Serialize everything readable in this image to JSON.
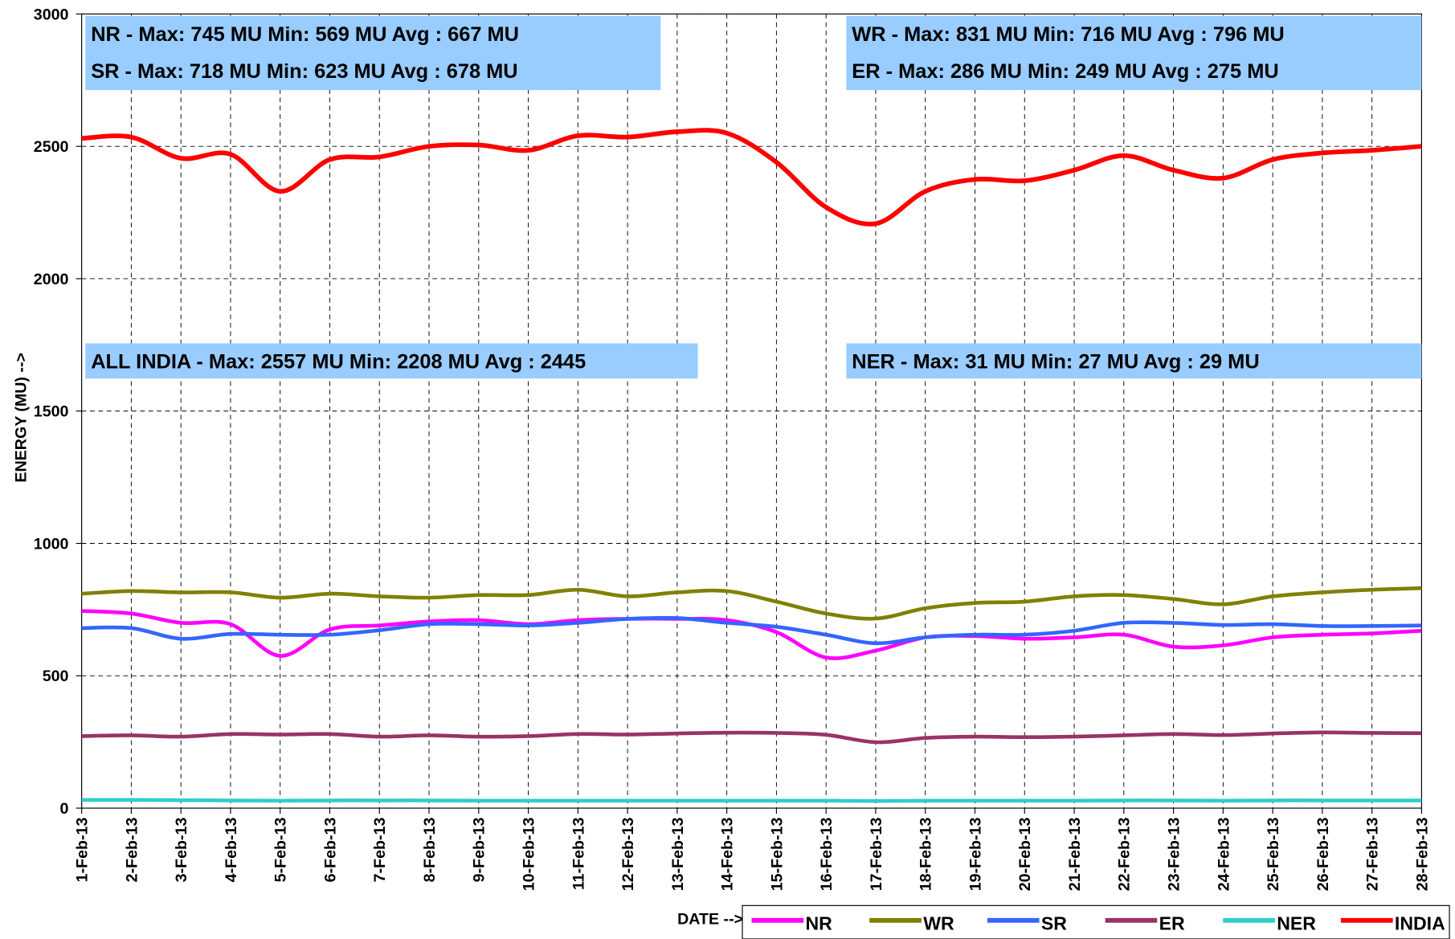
{
  "chart_data": {
    "type": "line",
    "y_label": "ENERGY (MU) -->",
    "x_label": "DATE -->",
    "categories": [
      "1-Feb-13",
      "2-Feb-13",
      "3-Feb-13",
      "4-Feb-13",
      "5-Feb-13",
      "6-Feb-13",
      "7-Feb-13",
      "8-Feb-13",
      "9-Feb-13",
      "10-Feb-13",
      "11-Feb-13",
      "12-Feb-13",
      "13-Feb-13",
      "14-Feb-13",
      "15-Feb-13",
      "16-Feb-13",
      "17-Feb-13",
      "18-Feb-13",
      "19-Feb-13",
      "20-Feb-13",
      "21-Feb-13",
      "22-Feb-13",
      "23-Feb-13",
      "24-Feb-13",
      "25-Feb-13",
      "26-Feb-13",
      "27-Feb-13",
      "28-Feb-13"
    ],
    "ylim": [
      0,
      3000
    ],
    "yticks": [
      0,
      500,
      1000,
      1500,
      2000,
      2500,
      3000
    ],
    "grid": true,
    "legend": "bottom-right",
    "annotations": [
      "NR - Max: 745 MU Min: 569 MU Avg : 667 MU",
      "SR - Max: 718 MU Min: 623 MU Avg : 678 MU",
      "WR - Max: 831 MU Min: 716 MU Avg : 796 MU",
      "ER - Max: 286 MU Min: 249 MU Avg : 275 MU",
      "ALL INDIA - Max: 2557 MU Min: 2208 MU Avg : 2445",
      "NER - Max: 31 MU Min: 27 MU Avg : 29 MU"
    ],
    "series": [
      {
        "name": "NR",
        "color": "#ff00ff",
        "values": [
          745,
          735,
          700,
          695,
          575,
          675,
          690,
          705,
          710,
          695,
          710,
          715,
          715,
          710,
          665,
          569,
          595,
          645,
          650,
          640,
          645,
          655,
          610,
          615,
          645,
          655,
          660,
          670
        ]
      },
      {
        "name": "WR",
        "color": "#808000",
        "values": [
          810,
          820,
          815,
          815,
          795,
          810,
          800,
          795,
          805,
          805,
          825,
          800,
          815,
          820,
          780,
          735,
          716,
          755,
          775,
          780,
          800,
          805,
          790,
          770,
          800,
          815,
          825,
          831
        ]
      },
      {
        "name": "SR",
        "color": "#3366ff",
        "values": [
          680,
          680,
          640,
          658,
          655,
          655,
          672,
          695,
          695,
          690,
          700,
          715,
          718,
          700,
          685,
          655,
          623,
          645,
          655,
          655,
          670,
          700,
          700,
          692,
          695,
          688,
          688,
          690
        ]
      },
      {
        "name": "ER",
        "color": "#993366",
        "values": [
          272,
          275,
          270,
          280,
          278,
          280,
          270,
          275,
          270,
          272,
          280,
          278,
          282,
          285,
          284,
          277,
          249,
          265,
          270,
          268,
          270,
          275,
          280,
          276,
          282,
          286,
          284,
          283
        ]
      },
      {
        "name": "NER",
        "color": "#33cccc",
        "values": [
          31,
          31,
          30,
          29,
          28,
          29,
          29,
          29,
          28,
          28,
          28,
          28,
          28,
          28,
          28,
          28,
          27,
          28,
          28,
          28,
          28,
          29,
          29,
          28,
          29,
          29,
          29,
          29
        ]
      },
      {
        "name": "INDIA",
        "color": "#ff0000",
        "values": [
          2530,
          2535,
          2455,
          2470,
          2330,
          2450,
          2460,
          2500,
          2505,
          2485,
          2540,
          2535,
          2555,
          2550,
          2440,
          2270,
          2208,
          2330,
          2375,
          2370,
          2410,
          2465,
          2410,
          2380,
          2450,
          2475,
          2485,
          2500
        ]
      }
    ]
  }
}
